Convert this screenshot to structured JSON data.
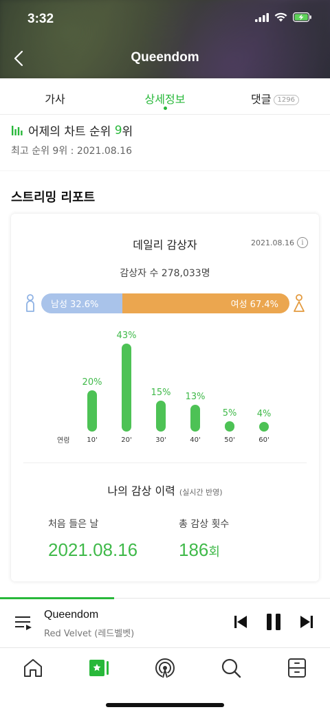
{
  "status_bar": {
    "time": "3:32"
  },
  "header": {
    "title": "Queendom"
  },
  "tabs": [
    {
      "label": "가사"
    },
    {
      "label": "상세정보"
    },
    {
      "label": "댓글",
      "badge": "1296"
    }
  ],
  "rank": {
    "prefix": "어제의 차트 순위 ",
    "value": "9",
    "suffix": "위",
    "best": "최고 순위 9위 : 2021.08.16"
  },
  "streaming": {
    "section_title": "스트리밍 리포트",
    "card_title": "데일리 감상자",
    "date": "2021.08.16",
    "info_glyph": "i",
    "listeners": "감상자 수 278,033명",
    "gender": {
      "male_label": "남성 32.6%",
      "male_pct": 32.6,
      "female_label": "여성 67.4%",
      "female_pct": 67.4
    },
    "age_axis_label": "연령"
  },
  "chart_data": {
    "type": "bar",
    "categories": [
      "10'",
      "20'",
      "30'",
      "40'",
      "50'",
      "60'"
    ],
    "values": [
      20,
      43,
      15,
      13,
      5,
      4
    ],
    "value_labels": [
      "20%",
      "43%",
      "15%",
      "13%",
      "5%",
      "4%"
    ],
    "xlabel": "연령",
    "ylim": [
      0,
      43
    ],
    "color": "#4dc255"
  },
  "my_history": {
    "title": "나의 감상 이력",
    "note": "(실시간 반영)",
    "first_label": "처음 들은 날",
    "first_value": "2021.08.16",
    "count_label": "총 감상 횟수",
    "count_value": "186",
    "count_unit": "회"
  },
  "player": {
    "title": "Queendom",
    "artist": "Red Velvet (레드벨벳)",
    "progress_pct": 34.6
  },
  "bottom_nav": [
    {
      "icon": "home-icon"
    },
    {
      "icon": "library-icon"
    },
    {
      "icon": "podcast-icon"
    },
    {
      "icon": "search-icon"
    },
    {
      "icon": "storage-icon"
    }
  ],
  "colors": {
    "accent": "#28b83a",
    "male": "#a9c3ea",
    "female": "#eba64f"
  }
}
